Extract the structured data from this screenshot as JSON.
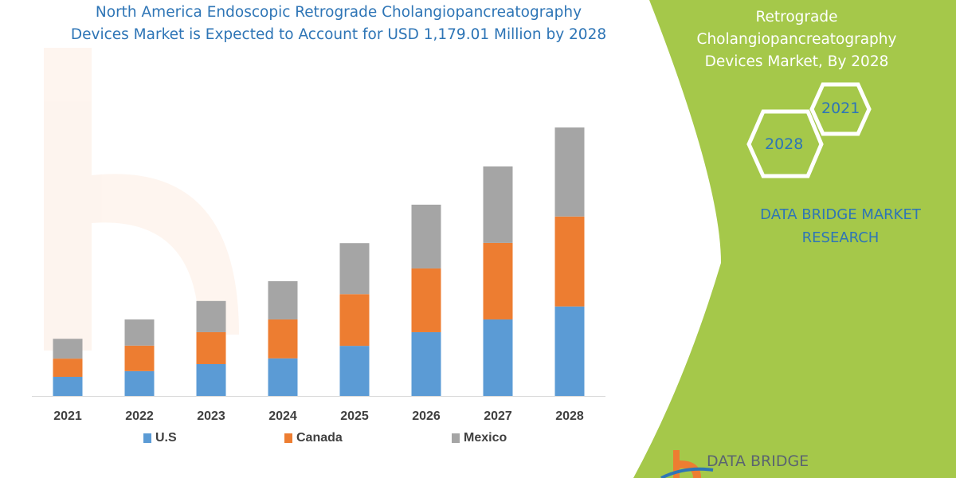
{
  "title": [
    "North America Endoscopic Retrograde Cholangiopancreatography",
    "Devices Market is Expected to Account for USD 1,179.01 Million by 2028"
  ],
  "panel": {
    "title_lines": [
      "Retrograde",
      "Cholangiopancreatography",
      "Devices Market, By 2028"
    ],
    "hex_years": [
      "2021",
      "2028"
    ],
    "brand_lines": [
      "DATA BRIDGE MARKET",
      "RESEARCH"
    ],
    "logo_text": "DATA BRIDGE",
    "background_color": "#a5c84a"
  },
  "chart_data": {
    "type": "bar",
    "stacked": true,
    "categories": [
      "2021",
      "2022",
      "2023",
      "2024",
      "2025",
      "2026",
      "2027",
      "2028"
    ],
    "series": [
      {
        "name": "U.S",
        "color": "#5b9bd5",
        "values": [
          84,
          109,
          140,
          165,
          220,
          280,
          336,
          393
        ]
      },
      {
        "name": "Canada",
        "color": "#ed7d31",
        "values": [
          80,
          112,
          140,
          171,
          227,
          280,
          336,
          395
        ]
      },
      {
        "name": "Mexico",
        "color": "#a5a5a5",
        "values": [
          87,
          115,
          137,
          168,
          224,
          280,
          336,
          391
        ]
      }
    ],
    "ylim": [
      0,
      1179.01
    ],
    "y_axis_shown": false,
    "grid": false,
    "legend": "bottom"
  }
}
